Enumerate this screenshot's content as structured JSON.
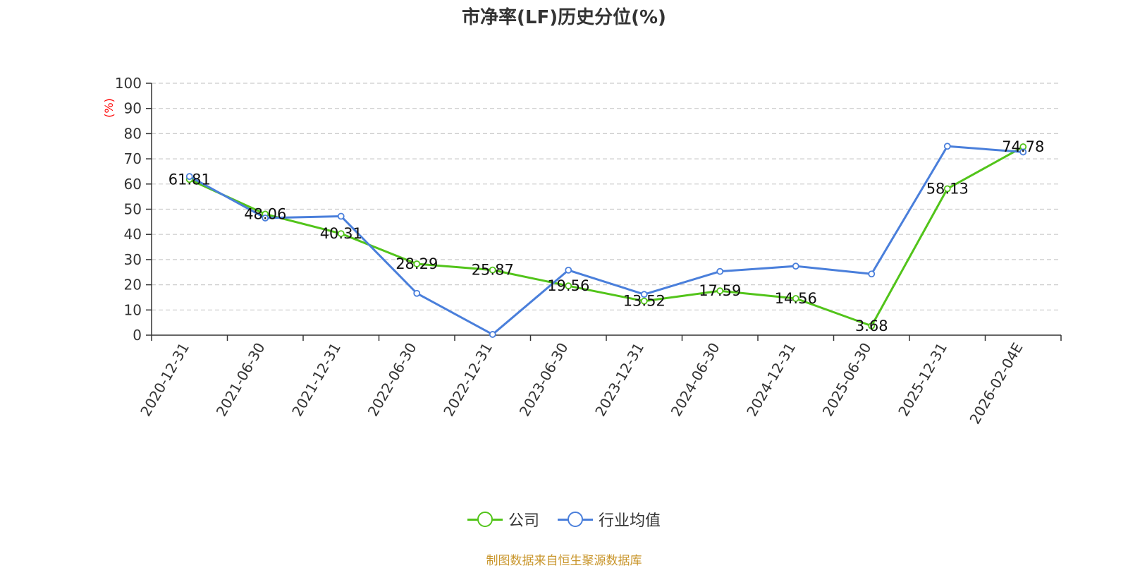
{
  "title": "市净率(LF)历史分位(%)",
  "source": "制图数据来自恒生聚源数据库",
  "colors": {
    "company": "#52c41a",
    "industry": "#4a7fdb",
    "source": "#c9962c",
    "ylabel": "#ff0000"
  },
  "legend": [
    {
      "name": "公司",
      "color": "#52c41a"
    },
    {
      "name": "行业均值",
      "color": "#4a7fdb"
    }
  ],
  "chart_data": {
    "type": "line",
    "title": "市净率(LF)历史分位(%)",
    "ylabel": "(%)",
    "xlabel": "",
    "ylim": [
      0,
      100
    ],
    "yticks": [
      "0",
      "10",
      "20",
      "30",
      "40",
      "50",
      "60",
      "70",
      "80",
      "90",
      "100"
    ],
    "grid": true,
    "legend_position": "bottom",
    "categories": [
      "2020-12-31",
      "2021-06-30",
      "2021-12-31",
      "2022-06-30",
      "2022-12-31",
      "2023-06-30",
      "2023-12-31",
      "2024-06-30",
      "2024-12-31",
      "2025-06-30",
      "2025-12-31",
      "2026-02-04E"
    ],
    "series": [
      {
        "name": "公司",
        "values": [
          61.81,
          48.06,
          40.31,
          28.29,
          25.87,
          19.56,
          13.52,
          17.59,
          14.56,
          3.68,
          58.13,
          74.78
        ],
        "labels": [
          "61.81",
          "48.06",
          "40.31",
          "28.29",
          "25.87",
          "19.56",
          "13.52",
          "17.59",
          "14.56",
          "3.68",
          "58.13",
          "74.78"
        ]
      },
      {
        "name": "行业均值",
        "values": [
          63.0,
          46.5,
          47.2,
          16.6,
          0.3,
          25.8,
          16.2,
          25.3,
          27.4,
          24.3,
          75.0,
          72.7
        ]
      }
    ]
  }
}
